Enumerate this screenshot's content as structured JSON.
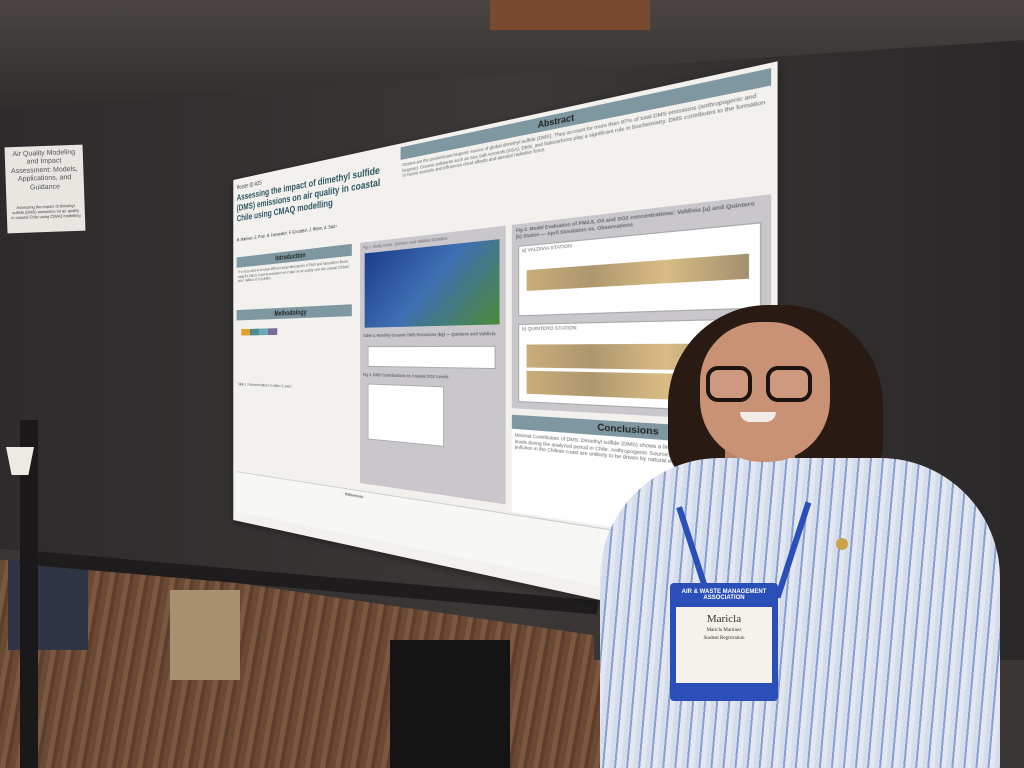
{
  "sign": {
    "title": "Air Quality Modeling and Impact Assessment: Models, Applications, and Guidance",
    "subtitle": "Assessing the impact of dimethyl sulfide (DMS) emissions on air quality in coastal Chile using CMAQ modelling"
  },
  "poster": {
    "poster_id": "Poster ID #25",
    "title": "Assessing the impact of dimethyl sulfide (DMS) emissions on air quality in coastal Chile using CMAQ modelling",
    "authors": "M. Martínez¹, E. Pino², R. Fernandez³, F. González³, J. Höfer¹, A. Saiz⁴",
    "sections": {
      "abstract": "Abstract",
      "introduction": "Introduction",
      "methodology": "Methodology",
      "conclusions": "Conclusions",
      "references": "References"
    },
    "abstract_text": "Oceans are the predominant biogenic source of global dimethyl sulfide (DMS). They account for more than 97% of total DMS emissions (anthropogenic and biogenic). Oceanic pollutants such as Sea Salt Aerosols (SSA), DMS, and halocarbons play a significant role in biochemistry. DMS contributes to the formation of marine aerosols and influences cloud albedo and aerosol radiative force.",
    "introduction_text": "This study aims to simulate different parameterizations of DMS and halocarbon fluxes using the CMAQ model to evaluate their impact on air quality over two coastal Chilean cities: Valdivia and Quintero.",
    "fig1": "Fig 1. Study Areas: Quintero and Valdivia Domains",
    "fig2": "Fig 2. Model Evaluation of PM2.5, O3 and SO2 concentrations: Valdivia (a) and Quintero (b) Station — April Simulation vs. Observations",
    "fig3": "Fig 3. DMS Contributions to Coastal SO2 Levels",
    "table1": "Table 1. Parameterizations to obtain k_water",
    "table2": "Table 2. Monthly Oceanic DMS Emissions (kg) — Quintero and Valdivia",
    "station_a": "a) VALDIVIA STATION",
    "station_b": "b) QUINTERO STATION",
    "conclusions_text": "Minimal Contribution of DMS: Dimethyl sulfide (DMS) shows a limited contribution to coastal SO2 levels during the analyzed period in Chile. Anthropogenic Sources Dominate: Atmospheric pollution in the Chilean coast are unlikely to be driven by natural emissions, such as DMS."
  },
  "badge": {
    "organization": "AIR & WASTE MANAGEMENT ASSOCIATION",
    "first_name": "Maricla",
    "full_name": "Maricla Martinez",
    "registration": "Student Registration"
  }
}
